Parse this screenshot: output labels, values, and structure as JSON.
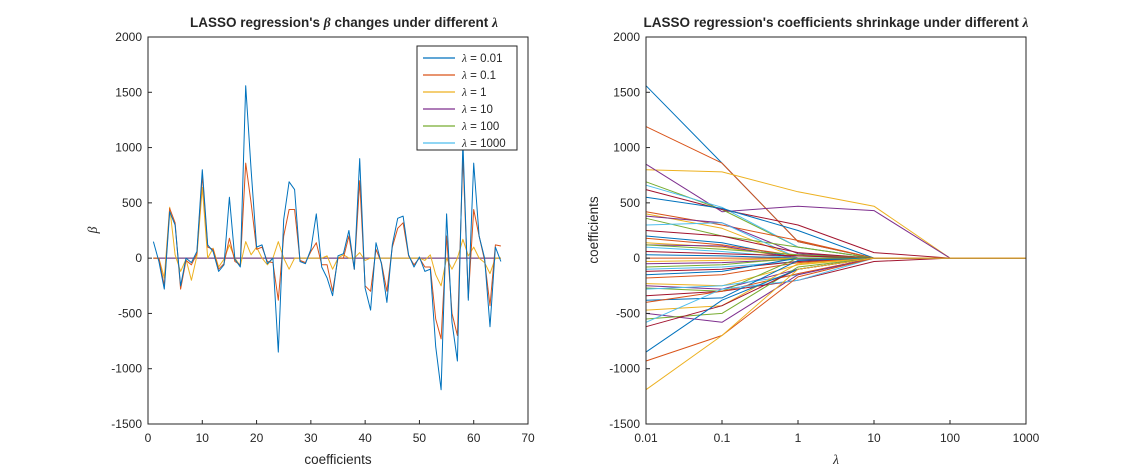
{
  "chart_data": [
    {
      "type": "line",
      "title": "LASSO regression's β changes under different λ",
      "title_parts": {
        "pre": "LASSO regression's ",
        "beta": "β",
        "mid": " changes under different ",
        "lambda": "λ"
      },
      "xlabel": "coefficients",
      "ylabel": "β",
      "xlim": [
        0,
        70
      ],
      "ylim": [
        -1500,
        2000
      ],
      "x_ticks": [
        0,
        10,
        20,
        30,
        40,
        50,
        60,
        70
      ],
      "y_ticks": [
        -1500,
        -1000,
        -500,
        0,
        500,
        1000,
        1500,
        2000
      ],
      "legend_position": "top-right",
      "legend_lambda": "λ",
      "x": [
        1,
        2,
        3,
        4,
        5,
        6,
        7,
        8,
        9,
        10,
        11,
        12,
        13,
        14,
        15,
        16,
        17,
        18,
        19,
        20,
        21,
        22,
        23,
        24,
        25,
        26,
        27,
        28,
        29,
        30,
        31,
        32,
        33,
        34,
        35,
        36,
        37,
        38,
        39,
        40,
        41,
        42,
        43,
        44,
        45,
        46,
        47,
        48,
        49,
        50,
        51,
        52,
        53,
        54,
        55,
        56,
        57,
        58,
        59,
        60,
        61,
        62,
        63,
        64,
        65
      ],
      "series": [
        {
          "name": " = 0.01",
          "color": "#0072BD",
          "values": [
            150,
            -30,
            -280,
            420,
            300,
            -250,
            0,
            -40,
            60,
            800,
            120,
            60,
            -120,
            -60,
            550,
            -10,
            -80,
            1560,
            800,
            100,
            120,
            -50,
            0,
            -850,
            350,
            690,
            620,
            -30,
            -50,
            80,
            400,
            -80,
            -180,
            -340,
            20,
            40,
            250,
            -100,
            900,
            -270,
            -470,
            140,
            -50,
            -400,
            120,
            360,
            380,
            30,
            -80,
            10,
            -120,
            -100,
            -800,
            -1190,
            400,
            -580,
            -930,
            1050,
            -380,
            860,
            200,
            0,
            -620,
            100,
            -30
          ]
        },
        {
          "name": " = 0.1",
          "color": "#D95319",
          "values": [
            0,
            0,
            -250,
            450,
            320,
            -280,
            -20,
            -60,
            40,
            750,
            100,
            80,
            -100,
            -50,
            180,
            -30,
            -60,
            860,
            500,
            80,
            100,
            -30,
            -40,
            -380,
            200,
            440,
            440,
            -20,
            -40,
            60,
            140,
            -60,
            -60,
            -300,
            0,
            0,
            200,
            -100,
            700,
            -250,
            -300,
            80,
            -40,
            -300,
            100,
            270,
            320,
            20,
            -60,
            0,
            -80,
            -80,
            -550,
            -730,
            200,
            -500,
            -700,
            930,
            -360,
            440,
            200,
            -20,
            -430,
            120,
            110
          ]
        },
        {
          "name": " = 1",
          "color": "#EDB120",
          "values": [
            0,
            0,
            -180,
            460,
            30,
            -120,
            -10,
            -200,
            20,
            640,
            0,
            90,
            -80,
            -10,
            120,
            0,
            -70,
            150,
            30,
            100,
            0,
            -60,
            0,
            150,
            0,
            -100,
            0,
            0,
            0,
            0,
            0,
            0,
            20,
            -100,
            0,
            30,
            0,
            0,
            50,
            -20,
            0,
            0,
            0,
            0,
            0,
            0,
            0,
            0,
            0,
            0,
            -20,
            30,
            -150,
            -250,
            0,
            -100,
            0,
            170,
            20,
            100,
            0,
            -40,
            -140,
            0,
            0
          ]
        },
        {
          "name": " = 10",
          "color": "#7E2F8E",
          "values": [
            0,
            0,
            0,
            0,
            0,
            0,
            0,
            0,
            0,
            0,
            0,
            0,
            0,
            0,
            0,
            0,
            0,
            0,
            0,
            0,
            0,
            0,
            0,
            0,
            0,
            0,
            0,
            0,
            0,
            0,
            0,
            0,
            0,
            0,
            0,
            0,
            0,
            0,
            0,
            0,
            0,
            0,
            0,
            0,
            0,
            0,
            0,
            0,
            0,
            0,
            0,
            0,
            0,
            0,
            0,
            0,
            0,
            0,
            0,
            0,
            0,
            0,
            0,
            0,
            0
          ]
        },
        {
          "name": " = 100",
          "color": "#77AC30",
          "values": [
            0,
            0,
            0,
            0,
            0,
            0,
            0,
            0,
            0,
            0,
            0,
            0,
            0,
            0,
            0,
            0,
            0,
            0,
            0,
            0,
            0,
            0,
            0,
            0,
            0,
            0,
            0,
            0,
            0,
            0,
            0,
            0,
            0,
            0,
            0,
            0,
            0,
            0,
            0,
            0,
            0,
            0,
            0,
            0,
            0,
            0,
            0,
            0,
            0,
            0,
            0,
            0,
            0,
            0,
            0,
            0,
            0,
            0,
            0,
            0,
            0,
            0,
            0,
            0,
            0
          ]
        },
        {
          "name": " = 1000",
          "color": "#4DBEEE",
          "values": [
            0,
            0,
            0,
            0,
            0,
            0,
            0,
            0,
            0,
            0,
            0,
            0,
            0,
            0,
            0,
            0,
            0,
            0,
            0,
            0,
            0,
            0,
            0,
            0,
            0,
            0,
            0,
            0,
            0,
            0,
            0,
            0,
            0,
            0,
            0,
            0,
            0,
            0,
            0,
            0,
            0,
            0,
            0,
            0,
            0,
            0,
            0,
            0,
            0,
            0,
            0,
            0,
            0,
            0,
            0,
            0,
            0,
            0,
            0,
            0,
            0,
            0,
            0,
            0,
            0
          ]
        }
      ]
    },
    {
      "type": "line",
      "title": "LASSO regression's coefficients shrinkage under different λ",
      "title_parts": {
        "pre": "LASSO regression's coefficients shrinkage under different ",
        "lambda": "λ"
      },
      "xlabel": "λ",
      "ylabel": "coefficients",
      "x_scale": "log",
      "x": [
        0.01,
        0.1,
        1,
        10,
        100,
        1000
      ],
      "x_ticks": [
        0.01,
        0.1,
        1,
        10,
        100,
        1000
      ],
      "x_ticklabels": [
        "0.01",
        "0.1",
        "1",
        "10",
        "100",
        "1000"
      ],
      "xlim": [
        0.01,
        1000
      ],
      "ylim": [
        -1500,
        2000
      ],
      "y_ticks": [
        -1500,
        -1000,
        -500,
        0,
        500,
        1000,
        1500,
        2000
      ],
      "color_order": [
        "#0072BD",
        "#D95319",
        "#EDB120",
        "#7E2F8E",
        "#77AC30",
        "#4DBEEE",
        "#A2142F"
      ],
      "paths": [
        [
          1560,
          860,
          150,
          0,
          0,
          0
        ],
        [
          1190,
          860,
          150,
          0,
          0,
          0
        ],
        [
          800,
          780,
          600,
          470,
          0,
          0
        ],
        [
          850,
          420,
          470,
          430,
          0,
          0
        ],
        [
          690,
          440,
          100,
          0,
          0,
          0
        ],
        [
          660,
          460,
          100,
          0,
          0,
          0
        ],
        [
          620,
          440,
          300,
          50,
          0,
          0
        ],
        [
          550,
          450,
          250,
          0,
          0,
          0
        ],
        [
          420,
          300,
          160,
          0,
          0,
          0
        ],
        [
          400,
          270,
          0,
          0,
          0,
          0
        ],
        [
          380,
          320,
          40,
          0,
          0,
          0
        ],
        [
          360,
          200,
          100,
          0,
          0,
          0
        ],
        [
          300,
          320,
          0,
          0,
          0,
          0
        ],
        [
          250,
          200,
          50,
          0,
          0,
          0
        ],
        [
          200,
          140,
          0,
          0,
          0,
          0
        ],
        [
          180,
          120,
          20,
          0,
          0,
          0
        ],
        [
          140,
          100,
          0,
          0,
          0,
          0
        ],
        [
          120,
          110,
          0,
          0,
          0,
          0
        ],
        [
          120,
          80,
          30,
          0,
          0,
          0
        ],
        [
          100,
          60,
          0,
          0,
          0,
          0
        ],
        [
          60,
          40,
          20,
          0,
          0,
          0
        ],
        [
          30,
          20,
          0,
          0,
          0,
          0
        ],
        [
          0,
          0,
          0,
          0,
          0,
          0
        ],
        [
          -30,
          -20,
          0,
          0,
          0,
          0
        ],
        [
          -50,
          -40,
          -10,
          0,
          0,
          0
        ],
        [
          -80,
          -60,
          0,
          0,
          0,
          0
        ],
        [
          -100,
          -80,
          -30,
          0,
          0,
          0
        ],
        [
          -120,
          -100,
          -30,
          0,
          0,
          0
        ],
        [
          -150,
          -120,
          0,
          0,
          0,
          0
        ],
        [
          -180,
          -150,
          -40,
          0,
          0,
          0
        ],
        [
          -230,
          -250,
          -60,
          0,
          0,
          0
        ],
        [
          -250,
          -280,
          -100,
          0,
          0,
          0
        ],
        [
          -270,
          -300,
          0,
          0,
          0,
          0
        ],
        [
          -280,
          -250,
          -150,
          0,
          0,
          0
        ],
        [
          -340,
          -300,
          -200,
          -30,
          0,
          0
        ],
        [
          -380,
          -360,
          -20,
          0,
          0,
          0
        ],
        [
          -400,
          -300,
          -140,
          0,
          0,
          0
        ],
        [
          -470,
          -430,
          -50,
          0,
          0,
          0
        ],
        [
          -500,
          -580,
          -150,
          0,
          0,
          0
        ],
        [
          -550,
          -500,
          -80,
          0,
          0,
          0
        ],
        [
          -580,
          -280,
          -200,
          0,
          0,
          0
        ],
        [
          -620,
          -430,
          -100,
          0,
          0,
          0
        ],
        [
          -850,
          -380,
          -100,
          0,
          0,
          0
        ],
        [
          -930,
          -700,
          -170,
          0,
          0,
          0
        ],
        [
          -1190,
          -700,
          -100,
          0,
          0,
          0
        ]
      ]
    }
  ]
}
